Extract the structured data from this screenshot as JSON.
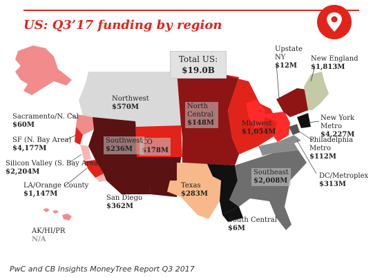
{
  "title": "US: Q3’17 funding by region",
  "total": {
    "label": "Total US:",
    "value": "$19.0B"
  },
  "caption": "PwC and CB Insights MoneyTree Report Q3 2017",
  "colors": {
    "accent": "#e2231a",
    "dark_maroon": "#5b1212",
    "maroon": "#8f1515",
    "red": "#e2231a",
    "bright_red": "#ff2a2a",
    "pink": "#f28b8b",
    "light_pink": "#f7b6b6",
    "peach": "#f7b98a",
    "grey": "#d9d9d9",
    "mid_grey": "#8c8c8c",
    "dark_grey": "#6e6e6e",
    "black": "#111111",
    "sage": "#c4c9a8"
  },
  "regions": {
    "northwest": {
      "name": "Northwest",
      "value": "$570M"
    },
    "north_central": {
      "name": "North Central",
      "value": "$148M"
    },
    "midwest": {
      "name": "Midwest",
      "value": "$1,054M"
    },
    "upstate_ny": {
      "name": "Upstate NY",
      "value": "$12M"
    },
    "new_england": {
      "name": "New England",
      "value": "$1,813M"
    },
    "new_york_metro": {
      "name": "New York Metro",
      "value": "$4,227M"
    },
    "philadelphia_metro": {
      "name": "Philadelphia Metro",
      "value": "$112M"
    },
    "dc_metroplex": {
      "name": "DC/Metroplex",
      "value": "$313M"
    },
    "southeast": {
      "name": "Southeast",
      "value": "$2,008M"
    },
    "south_central": {
      "name": "South Central",
      "value": "$6M"
    },
    "texas": {
      "name": "Texas",
      "value": "$283M"
    },
    "colorado": {
      "name": "CO",
      "value": "$178M"
    },
    "southwest": {
      "name": "Southwest",
      "value": "$236M"
    },
    "san_diego": {
      "name": "San Diego",
      "value": "$362M"
    },
    "la_orange_county": {
      "name": "LA/Orange County",
      "value": "$1,147M"
    },
    "silicon_valley": {
      "name": "Silicon Valley (S. Bay Area)",
      "value": "$2,204M"
    },
    "sf_north_bay": {
      "name": "SF (N. Bay Area)",
      "value": "$4,177M"
    },
    "sacramento": {
      "name": "Sacramento/N. Cal",
      "value": "$60M"
    },
    "ak_hi_pr": {
      "name": "AK/HI/PR",
      "value": "N/A"
    }
  }
}
